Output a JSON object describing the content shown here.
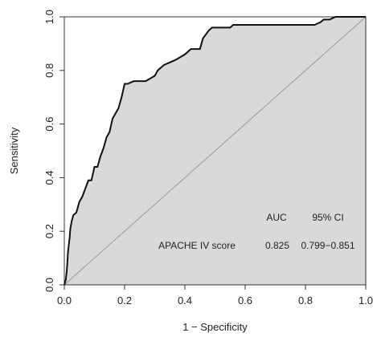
{
  "chart_data": {
    "type": "line",
    "subtype": "roc-curve",
    "title": "",
    "xlabel": "1 − Specificity",
    "ylabel": "Sensitivity",
    "xlim": [
      0,
      1
    ],
    "ylim": [
      0,
      1
    ],
    "x_ticks": [
      "0.0",
      "0.2",
      "0.4",
      "0.6",
      "0.8",
      "1.0"
    ],
    "y_ticks": [
      "0.0",
      "0.2",
      "0.4",
      "0.6",
      "0.8",
      "1.0"
    ],
    "grid": false,
    "area_fill": true,
    "colors": {
      "curve": "#111111",
      "fill": "#d9d9d9",
      "diagonal": "#9a9a9a",
      "axis": "#333333"
    },
    "reference_line": {
      "x": [
        0,
        1
      ],
      "y": [
        0,
        1
      ]
    },
    "series": [
      {
        "name": "APACHE IV score",
        "x": [
          0.0,
          0.005,
          0.008,
          0.01,
          0.012,
          0.015,
          0.018,
          0.02,
          0.025,
          0.03,
          0.04,
          0.05,
          0.06,
          0.07,
          0.08,
          0.09,
          0.1,
          0.11,
          0.12,
          0.13,
          0.14,
          0.15,
          0.16,
          0.17,
          0.18,
          0.19,
          0.2,
          0.21,
          0.23,
          0.24,
          0.25,
          0.27,
          0.3,
          0.31,
          0.33,
          0.35,
          0.37,
          0.4,
          0.42,
          0.45,
          0.46,
          0.48,
          0.49,
          0.5,
          0.55,
          0.56,
          0.6,
          0.65,
          0.7,
          0.75,
          0.8,
          0.83,
          0.85,
          0.86,
          0.88,
          0.9,
          0.95,
          1.0
        ],
        "y": [
          0.0,
          0.02,
          0.05,
          0.08,
          0.12,
          0.15,
          0.18,
          0.21,
          0.24,
          0.26,
          0.27,
          0.31,
          0.33,
          0.36,
          0.39,
          0.39,
          0.44,
          0.44,
          0.48,
          0.51,
          0.55,
          0.57,
          0.62,
          0.64,
          0.66,
          0.7,
          0.75,
          0.75,
          0.76,
          0.76,
          0.76,
          0.76,
          0.78,
          0.8,
          0.82,
          0.83,
          0.84,
          0.86,
          0.88,
          0.88,
          0.92,
          0.95,
          0.96,
          0.96,
          0.96,
          0.97,
          0.97,
          0.97,
          0.97,
          0.97,
          0.97,
          0.97,
          0.98,
          0.99,
          0.99,
          1.0,
          1.0,
          1.0
        ]
      }
    ],
    "annotation": {
      "header_auc": "AUC",
      "header_ci": "95% CI",
      "row_label": "APACHE IV score",
      "row_auc": "0.825",
      "row_ci": "0.799−0.851"
    }
  }
}
